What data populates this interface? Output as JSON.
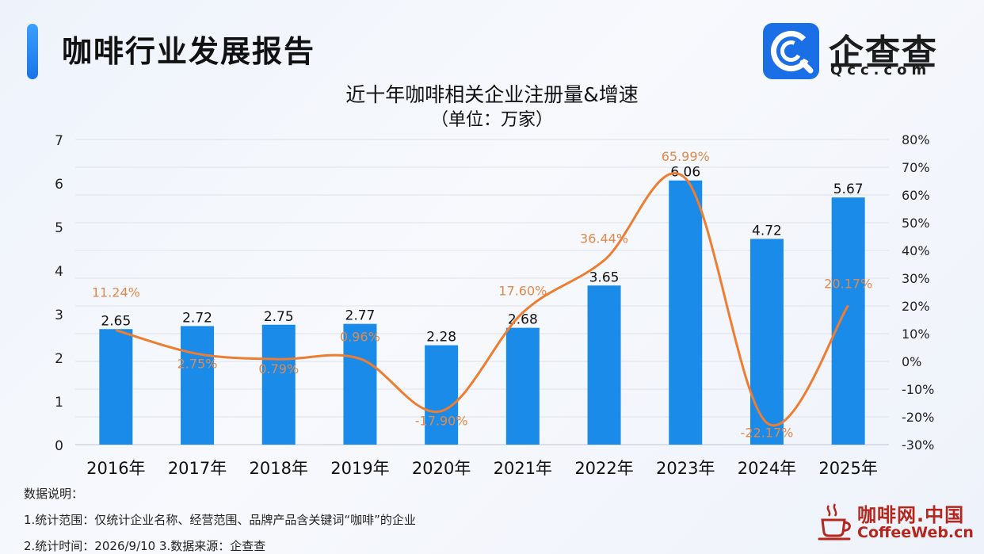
{
  "header": {
    "report_title": "咖啡行业发展报告",
    "logo_name": "企查查",
    "logo_domain": "Qcc.com"
  },
  "chart_data": {
    "type": "bar",
    "title": "近十年咖啡相关企业注册量&增速",
    "unit": "（单位：万家）",
    "categories": [
      "2016年",
      "2017年",
      "2018年",
      "2019年",
      "2020年",
      "2021年",
      "2022年",
      "2023年",
      "2024年",
      "2025年"
    ],
    "series": [
      {
        "type": "bar",
        "axis": "left",
        "values": [
          2.65,
          2.72,
          2.75,
          2.77,
          2.28,
          2.68,
          3.65,
          6.06,
          4.72,
          5.67
        ],
        "labels": [
          "2.65",
          "2.72",
          "2.75",
          "2.77",
          "2.28",
          "2.68",
          "3.65",
          "6.06",
          "4.72",
          "5.67"
        ],
        "color": "#1a8be8"
      },
      {
        "type": "line",
        "axis": "right",
        "values": [
          11.24,
          2.75,
          0.79,
          0.96,
          -17.9,
          17.6,
          36.44,
          65.99,
          -22.17,
          20.17
        ],
        "labels": [
          "11.24%",
          "2.75%",
          "0.79%",
          "0.96%",
          "-17.90%",
          "17.60%",
          "36.44%",
          "65.99%",
          "-22.17%",
          "20.17%"
        ],
        "color": "#ed7d31"
      }
    ],
    "y_left": {
      "min": 0,
      "max": 7,
      "ticks": [
        "0",
        "1",
        "2",
        "3",
        "4",
        "5",
        "6",
        "7"
      ]
    },
    "y_right": {
      "min": -30,
      "max": 80,
      "ticks": [
        "-30%",
        "-20%",
        "-10%",
        "0%",
        "10%",
        "20%",
        "30%",
        "40%",
        "50%",
        "60%",
        "70%",
        "80%"
      ]
    },
    "grid": true
  },
  "notes": {
    "heading": "数据说明：",
    "line1": "1.统计范围：仅统计企业名称、经营范围、品牌产品含关键词“咖啡”的企业",
    "line2": "2.统计时间：2026/9/10 3.数据来源：企查查"
  },
  "watermark": {
    "name": "咖啡网.中国",
    "domain": "CoffeeWeb.cn"
  }
}
